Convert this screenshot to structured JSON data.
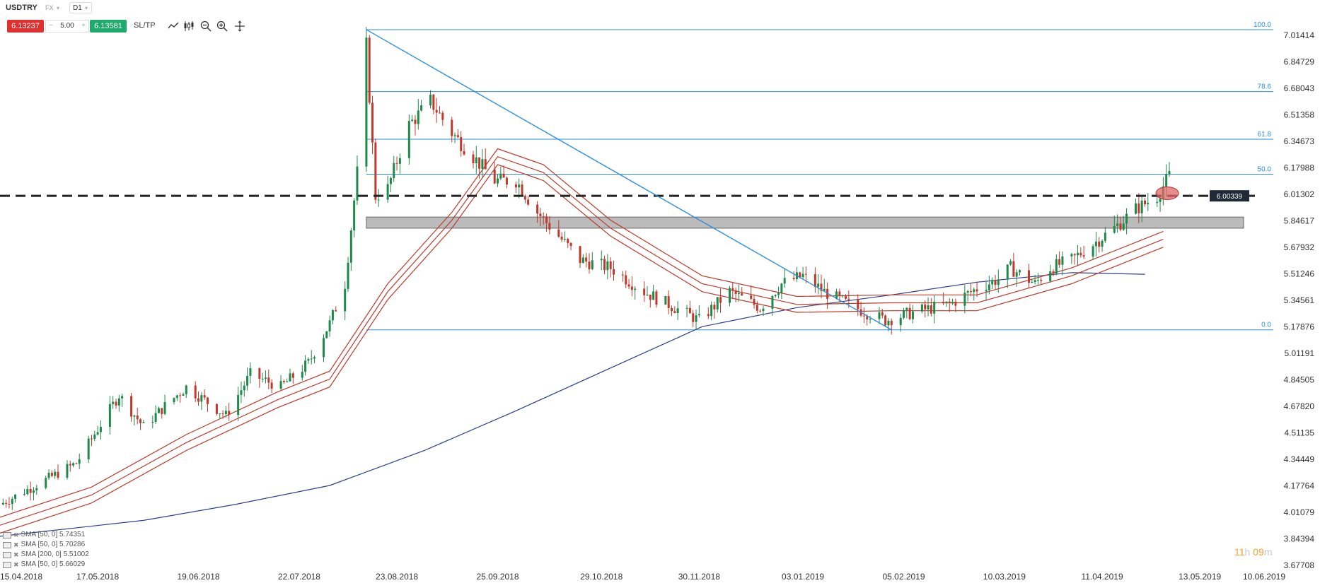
{
  "toolbar": {
    "symbol": "USDTRY",
    "market": "FX",
    "timeframe": "D1",
    "sell_price": "6.13237",
    "volume": "5.00",
    "volume_minus": "−",
    "volume_plus": "+",
    "buy_price": "6.13581",
    "sl_tp": "SL/TP",
    "tool_icons": [
      "line-chart-icon",
      "candles-icon",
      "zoom-out-icon",
      "zoom-in-icon",
      "crosshair-icon"
    ],
    "sell_color": "#e0302f",
    "buy_color": "#1eaa6a"
  },
  "timer": {
    "hours": "11",
    "h_unit": "h",
    "minutes": "09",
    "m_unit": "m"
  },
  "legend": [
    "SMA [50, 0] 5.74351",
    "SMA [50, 0] 5.70286",
    "SMA [200, 0] 5.51002",
    "SMA [50, 0] 5.66029"
  ],
  "chart_data": {
    "type": "candlestick",
    "symbol": "USDTRY",
    "timeframe": "D1",
    "ylim": [
      3.67708,
      7.1
    ],
    "y_ticks": [
      "7.01414",
      "6.84729",
      "6.68043",
      "6.51358",
      "6.34673",
      "6.17988",
      "6.01302",
      "5.84617",
      "5.67932",
      "5.51246",
      "5.34561",
      "5.17876",
      "5.01191",
      "4.84505",
      "4.67820",
      "4.51135",
      "4.34449",
      "4.17764",
      "4.01079",
      "3.84394",
      "3.67708"
    ],
    "x_ticks": [
      "15.04.2018",
      "17.05.2018",
      "19.06.2018",
      "22.07.2018",
      "23.08.2018",
      "25.09.2018",
      "29.10.2018",
      "30.11.2018",
      "03.01.2019",
      "05.02.2019",
      "10.03.2019",
      "11.04.2019",
      "13.05.2019",
      "10.06.2019"
    ],
    "price_path": [
      [
        "15.04.2018",
        4.06
      ],
      [
        "10.05.2018",
        4.32
      ],
      [
        "24.05.2018",
        4.75
      ],
      [
        "01.06.2018",
        4.55
      ],
      [
        "08.06.2018",
        4.68
      ],
      [
        "15.06.2018",
        4.8
      ],
      [
        "28.06.2018",
        4.62
      ],
      [
        "06.07.2018",
        4.88
      ],
      [
        "16.07.2018",
        4.8
      ],
      [
        "25.07.2018",
        4.95
      ],
      [
        "01.08.2018",
        5.2
      ],
      [
        "06.08.2018",
        5.45
      ],
      [
        "10.08.2018",
        6.15
      ],
      [
        "13.08.2018",
        6.95
      ],
      [
        "16.08.2018",
        6.0
      ],
      [
        "20.08.2018",
        6.05
      ],
      [
        "27.08.2018",
        6.45
      ],
      [
        "03.09.2018",
        6.6
      ],
      [
        "10.09.2018",
        6.4
      ],
      [
        "17.09.2018",
        6.25
      ],
      [
        "24.09.2018",
        6.1
      ],
      [
        "01.10.2018",
        6.1
      ],
      [
        "08.10.2018",
        5.9
      ],
      [
        "15.10.2018",
        5.75
      ],
      [
        "22.10.2018",
        5.6
      ],
      [
        "01.11.2018",
        5.55
      ],
      [
        "12.11.2018",
        5.4
      ],
      [
        "22.11.2018",
        5.3
      ],
      [
        "30.11.2018",
        5.22
      ],
      [
        "10.12.2018",
        5.4
      ],
      [
        "20.12.2018",
        5.3
      ],
      [
        "27.12.2018",
        5.45
      ],
      [
        "03.01.2019",
        5.5
      ],
      [
        "10.01.2019",
        5.4
      ],
      [
        "20.01.2019",
        5.3
      ],
      [
        "30.01.2019",
        5.22
      ],
      [
        "10.02.2019",
        5.28
      ],
      [
        "20.02.2019",
        5.32
      ],
      [
        "01.03.2019",
        5.42
      ],
      [
        "08.03.2019",
        5.48
      ],
      [
        "12.03.2019",
        5.55
      ],
      [
        "20.03.2019",
        5.45
      ],
      [
        "25.03.2019",
        5.55
      ],
      [
        "01.04.2019",
        5.6
      ],
      [
        "08.04.2019",
        5.7
      ],
      [
        "15.04.2019",
        5.8
      ],
      [
        "22.04.2019",
        5.92
      ],
      [
        "29.04.2019",
        6.0
      ],
      [
        "03.05.2019",
        6.13
      ]
    ],
    "current_price": 6.13237,
    "horizontal_level": {
      "price": 6.00339,
      "label": "6.00339",
      "style": "dashed"
    },
    "support_zone": [
      5.8,
      5.87
    ],
    "fibonacci": {
      "levels": [
        {
          "label": "100.0",
          "price": 7.05
        },
        {
          "label": "78.6",
          "price": 6.66
        },
        {
          "label": "61.8",
          "price": 6.36
        },
        {
          "label": "50.0",
          "price": 6.14
        },
        {
          "label": "0.0",
          "price": 5.16
        }
      ]
    },
    "trendline": {
      "from": [
        "13.08.2018",
        7.05
      ],
      "to": [
        "01.02.2019",
        5.16
      ]
    },
    "series": [
      {
        "name": "SMA [50, 0] 5.74351",
        "color": "#c0392b"
      },
      {
        "name": "SMA [50, 0] 5.70286",
        "color": "#c0392b"
      },
      {
        "name": "SMA [200, 0] 5.51002",
        "color": "#2c3e8c"
      },
      {
        "name": "SMA [50, 0] 5.66029",
        "color": "#c0392b"
      }
    ],
    "sma_paths": {
      "sma_200": [
        [
          "15.04.2018",
          3.86
        ],
        [
          "01.06.2018",
          3.96
        ],
        [
          "01.07.2018",
          4.06
        ],
        [
          "01.08.2018",
          4.18
        ],
        [
          "01.09.2018",
          4.4
        ],
        [
          "01.10.2018",
          4.65
        ],
        [
          "01.11.2018",
          4.92
        ],
        [
          "01.12.2018",
          5.18
        ],
        [
          "01.01.2019",
          5.3
        ],
        [
          "01.02.2019",
          5.38
        ],
        [
          "01.03.2019",
          5.46
        ],
        [
          "01.04.2019",
          5.52
        ],
        [
          "25.04.2019",
          5.51
        ]
      ],
      "sma_red_mid": [
        [
          "15.04.2018",
          3.93
        ],
        [
          "15.05.2018",
          4.12
        ],
        [
          "15.06.2018",
          4.45
        ],
        [
          "15.07.2018",
          4.72
        ],
        [
          "01.08.2018",
          4.85
        ],
        [
          "20.08.2018",
          5.4
        ],
        [
          "10.09.2018",
          5.85
        ],
        [
          "25.09.2018",
          6.25
        ],
        [
          "10.10.2018",
          6.15
        ],
        [
          "01.11.2018",
          5.8
        ],
        [
          "01.12.2018",
          5.45
        ],
        [
          "01.01.2019",
          5.32
        ],
        [
          "01.02.2019",
          5.33
        ],
        [
          "01.03.2019",
          5.33
        ],
        [
          "01.04.2019",
          5.5
        ],
        [
          "01.05.2019",
          5.73
        ]
      ]
    },
    "highlight_marker": {
      "date": "30.04.2019",
      "price": 6.02,
      "color": "#e06666"
    },
    "colors": {
      "up": "#1e8a4a",
      "down": "#c0392b",
      "fib": "#2e8fe0",
      "zone": "#bbbbbb"
    }
  }
}
